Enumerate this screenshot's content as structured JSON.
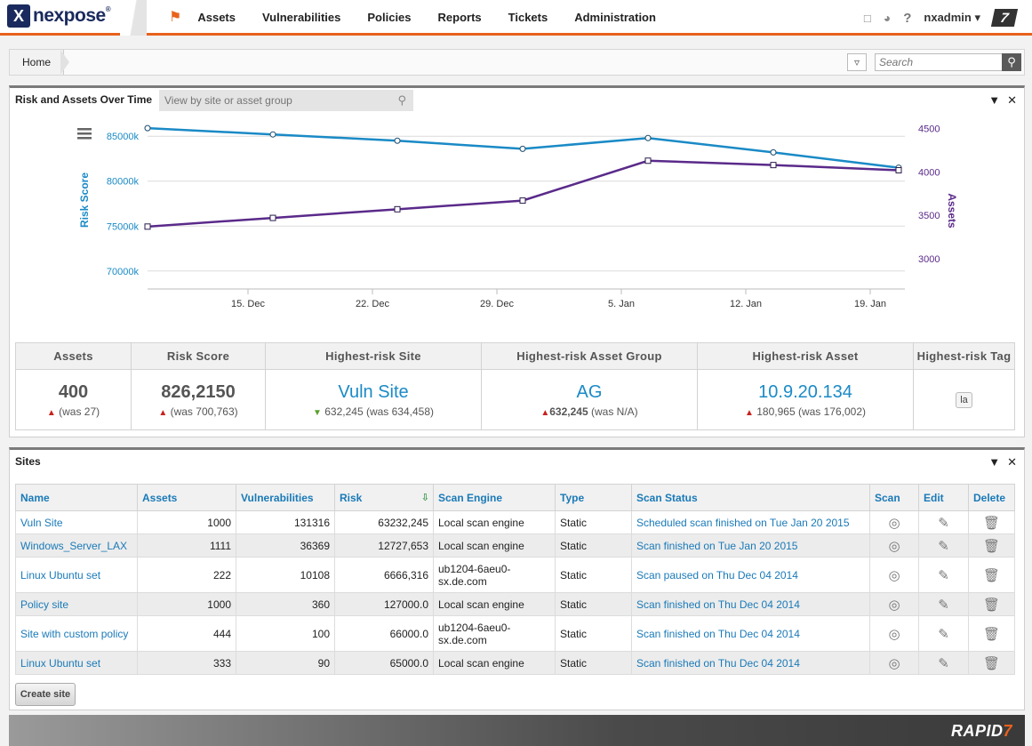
{
  "brand": {
    "name": "nexpose",
    "mark": "X",
    "reg": "®"
  },
  "nav": {
    "items": [
      "Assets",
      "Vulnerabilities",
      "Policies",
      "Reports",
      "Tickets",
      "Administration"
    ],
    "user": "nxadmin ▾",
    "help": "?",
    "badge": "7"
  },
  "breadcrumb": {
    "home": "Home"
  },
  "search": {
    "placeholder": "Search"
  },
  "risk_panel": {
    "title": "Risk and Assets Over Time",
    "filter_placeholder": "View by site or asset group"
  },
  "chart_data": {
    "type": "line",
    "x": [
      "Dec 10",
      "Dec 16",
      "Dec 22",
      "Dec 31",
      "Jan 6",
      "Jan 13",
      "Jan 20"
    ],
    "xticks": [
      "15. Dec",
      "22. Dec",
      "29. Dec",
      "5. Jan",
      "12. Jan",
      "19. Jan"
    ],
    "y_left": {
      "label": "Risk Score",
      "ticks": [
        "85000k",
        "80000k",
        "75000k",
        "70000k"
      ],
      "range": [
        68000,
        87000
      ]
    },
    "y_right": {
      "label": "Assets",
      "ticks": [
        "4500",
        "4000",
        "3500",
        "3000"
      ],
      "range": [
        2650,
        4620
      ]
    },
    "series": [
      {
        "name": "Risk Score",
        "axis": "left",
        "color": "#1a8ac6",
        "values": [
          85900,
          85200,
          84500,
          83600,
          84800,
          83200,
          81500
        ]
      },
      {
        "name": "Assets",
        "axis": "right",
        "color": "#5a2a8a",
        "values": [
          3370,
          3470,
          3570,
          3670,
          4130,
          4080,
          4020
        ]
      }
    ],
    "grid": true
  },
  "summary": {
    "headers": [
      "Assets",
      "Risk Score",
      "Highest-risk Site",
      "Highest-risk Asset Group",
      "Highest-risk Asset",
      "Highest-risk Tag"
    ],
    "assets": {
      "value": "400",
      "sub": "(was 27)"
    },
    "risk": {
      "value": "826,2150",
      "sub": "(was 700,763)"
    },
    "site": {
      "value": "Vuln Site",
      "sub": "632,245 (was 634,458)"
    },
    "group": {
      "value": "AG",
      "sub_bold": "632,245",
      "sub": "(was N/A)"
    },
    "asset": {
      "value": "10.9.20.134",
      "sub": "180,965 (was 176,002)"
    },
    "tag": {
      "value": "la"
    }
  },
  "sites_panel": {
    "title": "Sites",
    "headers": [
      "Name",
      "Assets",
      "Vulnerabilities",
      "Risk",
      "Scan Engine",
      "Type",
      "Scan Status",
      "Scan",
      "Edit",
      "Delete"
    ],
    "rows": [
      {
        "name": "Vuln Site",
        "assets": "1000",
        "vulns": "131316",
        "risk": "63232,245",
        "engine": "Local scan engine",
        "type": "Static",
        "status": "Scheduled scan finished on Tue Jan 20 2015"
      },
      {
        "name": "Windows_Server_LAX",
        "assets": "1111",
        "vulns": "36369",
        "risk": "12727,653",
        "engine": "Local scan engine",
        "type": "Static",
        "status": "Scan finished on Tue Jan 20 2015"
      },
      {
        "name": "Linux Ubuntu set",
        "assets": "222",
        "vulns": "10108",
        "risk": "6666,316",
        "engine": "ub1204-6aeu0-sx.de.com",
        "type": "Static",
        "status": "Scan paused on Thu Dec 04 2014"
      },
      {
        "name": "Policy site",
        "assets": "1000",
        "vulns": "360",
        "risk": "127000.0",
        "engine": "Local scan engine",
        "type": "Static",
        "status": "Scan finished on Thu Dec 04 2014"
      },
      {
        "name": "Site with custom policy",
        "assets": "444",
        "vulns": "100",
        "risk": "66000.0",
        "engine": "ub1204-6aeu0-sx.de.com",
        "type": "Static",
        "status": "Scan finished on Thu Dec 04 2014"
      },
      {
        "name": "Linux Ubuntu set",
        "assets": "333",
        "vulns": "90",
        "risk": "65000.0",
        "engine": "Local scan engine",
        "type": "Static",
        "status": "Scan finished on Thu Dec 04 2014"
      }
    ],
    "create_label": "Create site"
  },
  "footer": {
    "brand": "RAPID",
    "brand_mark": "7"
  }
}
